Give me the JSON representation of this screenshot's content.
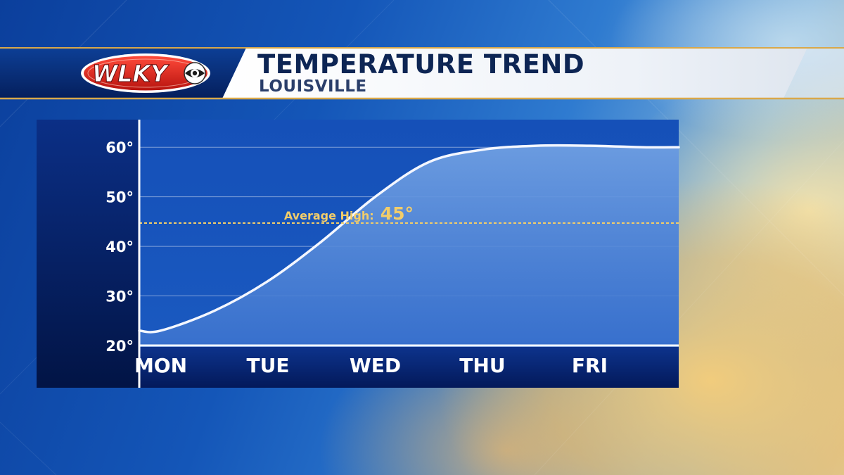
{
  "station": {
    "logo_text": "WLKY"
  },
  "header": {
    "title": "TEMPERATURE TREND",
    "subtitle": "LOUISVILLE"
  },
  "colors": {
    "title": "#0d2554",
    "average_line": "#f2cd6a",
    "curve": "#f4f7ff",
    "panel_dark": "#031a55"
  },
  "chart_data": {
    "type": "area",
    "title": "TEMPERATURE TREND",
    "subtitle": "LOUISVILLE",
    "categories": [
      "MON",
      "TUE",
      "WED",
      "THU",
      "FRI"
    ],
    "y_unit": "°",
    "ylim": [
      20,
      65
    ],
    "yticks": [
      20,
      30,
      40,
      50,
      60
    ],
    "ytick_labels": [
      "20°",
      "30°",
      "40°",
      "50°",
      "60°"
    ],
    "grid": true,
    "legend": "none",
    "series": [
      {
        "x": [
          0.0,
          0.5,
          1.0,
          1.5,
          2.0,
          2.5,
          3.0,
          3.5,
          4.0,
          4.5
        ],
        "values": [
          23,
          27,
          33,
          41,
          50,
          57,
          59.5,
          60.3,
          60.3,
          60
        ]
      }
    ],
    "x_range": [
      -0.2,
      4.83
    ],
    "reference_line": {
      "label": "Average High:",
      "value_label": "45°",
      "value": 44.7
    }
  }
}
